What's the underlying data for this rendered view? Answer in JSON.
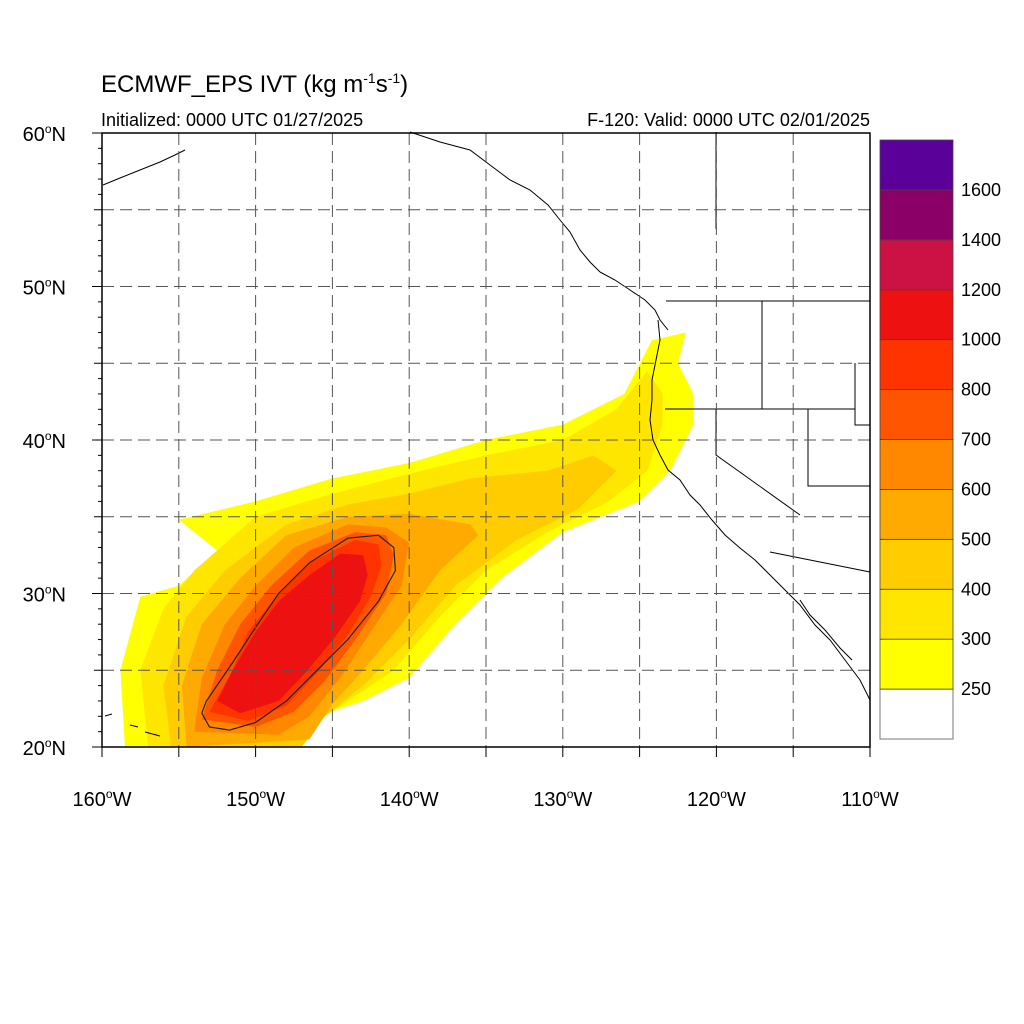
{
  "header": {
    "title_main": "ECMWF_EPS IVT (kg m",
    "title_sup1": "-1",
    "title_mid": "s",
    "title_sup2": "-1",
    "title_end": ")",
    "initialized": "Initialized: 0000 UTC 01/27/2025",
    "valid": "F-120: Valid: 0000 UTC 02/01/2025"
  },
  "axes": {
    "lat_labels": [
      {
        "value": 60,
        "text": "60",
        "suffix": "N"
      },
      {
        "value": 50,
        "text": "50",
        "suffix": "N"
      },
      {
        "value": 40,
        "text": "40",
        "suffix": "N"
      },
      {
        "value": 30,
        "text": "30",
        "suffix": "N"
      },
      {
        "value": 20,
        "text": "20",
        "suffix": "N"
      }
    ],
    "lon_labels": [
      {
        "value": -160,
        "text": "160",
        "suffix": "W"
      },
      {
        "value": -150,
        "text": "150",
        "suffix": "W"
      },
      {
        "value": -140,
        "text": "140",
        "suffix": "W"
      },
      {
        "value": -130,
        "text": "130",
        "suffix": "W"
      },
      {
        "value": -120,
        "text": "120",
        "suffix": "W"
      },
      {
        "value": -110,
        "text": "110",
        "suffix": "W"
      }
    ],
    "lon_range": [
      -160,
      -110
    ],
    "lat_range": [
      20,
      60
    ],
    "grid_lat_step": 5,
    "grid_lon_step": 5
  },
  "colorbar": {
    "levels": [
      {
        "label": "250",
        "color": "#ffff00"
      },
      {
        "label": "300",
        "color": "#ffe600"
      },
      {
        "label": "400",
        "color": "#ffcc00"
      },
      {
        "label": "500",
        "color": "#ffaa00"
      },
      {
        "label": "600",
        "color": "#ff8800"
      },
      {
        "label": "700",
        "color": "#ff5500"
      },
      {
        "label": "800",
        "color": "#ff3300"
      },
      {
        "label": "1000",
        "color": "#ee1111"
      },
      {
        "label": "1200",
        "color": "#cc1144"
      },
      {
        "label": "1400",
        "color": "#8b0066"
      },
      {
        "label": "1600",
        "color": "#5b0099"
      }
    ]
  },
  "chart_data": {
    "type": "heatmap",
    "field": "IVT",
    "features": [
      {
        "level": "250",
        "points": [
          [
            -158.5,
            20
          ],
          [
            -158.8,
            25
          ],
          [
            -157.5,
            29.8
          ],
          [
            -155,
            30.5
          ],
          [
            -152.5,
            32.8
          ],
          [
            -155,
            34.8
          ],
          [
            -150,
            36
          ],
          [
            -145,
            37.5
          ],
          [
            -140,
            38.5
          ],
          [
            -135,
            40
          ],
          [
            -130,
            41
          ],
          [
            -126,
            43
          ],
          [
            -124.2,
            46.5
          ],
          [
            -122,
            47
          ],
          [
            -122.5,
            45
          ],
          [
            -121.5,
            43
          ],
          [
            -121.5,
            41
          ],
          [
            -123,
            38
          ],
          [
            -125,
            36
          ],
          [
            -130,
            34
          ],
          [
            -134,
            31
          ],
          [
            -137,
            28
          ],
          [
            -140,
            24.5
          ],
          [
            -143,
            23
          ],
          [
            -146,
            22
          ],
          [
            -148,
            20.5
          ],
          [
            -150,
            20
          ]
        ]
      },
      {
        "level": "300",
        "points": [
          [
            -157,
            20
          ],
          [
            -157.5,
            25
          ],
          [
            -156,
            29
          ],
          [
            -154,
            31.5
          ],
          [
            -150,
            35
          ],
          [
            -145,
            36.5
          ],
          [
            -140,
            37.8
          ],
          [
            -135,
            39
          ],
          [
            -130,
            40
          ],
          [
            -126.5,
            42
          ],
          [
            -124.5,
            44.5
          ],
          [
            -123.5,
            43
          ],
          [
            -123.5,
            41
          ],
          [
            -124.5,
            38
          ],
          [
            -127,
            36
          ],
          [
            -131,
            34
          ],
          [
            -135,
            31.5
          ],
          [
            -138,
            28.5
          ],
          [
            -141,
            25
          ],
          [
            -144,
            23
          ],
          [
            -147,
            21
          ],
          [
            -148.5,
            20
          ]
        ]
      },
      {
        "level": "400",
        "points": [
          [
            -155.5,
            20
          ],
          [
            -156,
            24
          ],
          [
            -154.5,
            28.5
          ],
          [
            -152,
            31.5
          ],
          [
            -148,
            34.5
          ],
          [
            -144,
            35.8
          ],
          [
            -140,
            36.5
          ],
          [
            -136,
            37.5
          ],
          [
            -131,
            38
          ],
          [
            -128,
            39
          ],
          [
            -126.5,
            38
          ],
          [
            -129,
            35.5
          ],
          [
            -133,
            33.5
          ],
          [
            -137,
            30.5
          ],
          [
            -140,
            27
          ],
          [
            -143,
            24
          ],
          [
            -145.5,
            22
          ],
          [
            -147,
            20
          ]
        ]
      },
      {
        "level": "500",
        "points": [
          [
            -154.5,
            20
          ],
          [
            -154.8,
            24
          ],
          [
            -153.5,
            28
          ],
          [
            -151,
            31
          ],
          [
            -148,
            33.8
          ],
          [
            -144,
            35
          ],
          [
            -140,
            35.2
          ],
          [
            -136,
            34.5
          ],
          [
            -135.5,
            33.8
          ],
          [
            -138,
            31.5
          ],
          [
            -140.5,
            28
          ],
          [
            -143,
            25
          ],
          [
            -145,
            22.8
          ],
          [
            -146.5,
            20.5
          ]
        ]
      },
      {
        "level": "600",
        "points": [
          [
            -154,
            21
          ],
          [
            -153.5,
            24.5
          ],
          [
            -152,
            28
          ],
          [
            -150,
            30.5
          ],
          [
            -147.5,
            33
          ],
          [
            -144,
            34.5
          ],
          [
            -141.5,
            34.3
          ],
          [
            -140,
            33.3
          ],
          [
            -140.5,
            30.5
          ],
          [
            -142.5,
            27.5
          ],
          [
            -144.5,
            24.5
          ],
          [
            -146.5,
            22
          ],
          [
            -148.5,
            20.8
          ]
        ]
      },
      {
        "level": "700",
        "points": [
          [
            -153.5,
            21.8
          ],
          [
            -152.5,
            25
          ],
          [
            -151,
            28
          ],
          [
            -149,
            30.5
          ],
          [
            -146.5,
            32.8
          ],
          [
            -143.5,
            34
          ],
          [
            -141.5,
            33.8
          ],
          [
            -141,
            32.5
          ],
          [
            -141.5,
            30
          ],
          [
            -143.5,
            27
          ],
          [
            -145.5,
            24.3
          ],
          [
            -147.5,
            22.3
          ],
          [
            -150,
            21.3
          ]
        ]
      },
      {
        "level": "800",
        "points": [
          [
            -153,
            22.3
          ],
          [
            -151.5,
            25
          ],
          [
            -150.5,
            27.5
          ],
          [
            -148.5,
            30
          ],
          [
            -146.5,
            32
          ],
          [
            -143.5,
            33.5
          ],
          [
            -142,
            33.2
          ],
          [
            -141.8,
            31.8
          ],
          [
            -142.5,
            29.8
          ],
          [
            -144,
            27.3
          ],
          [
            -146,
            24.8
          ],
          [
            -148,
            22.7
          ],
          [
            -150.5,
            21.7
          ]
        ]
      },
      {
        "level": "1000",
        "points": [
          [
            -152.5,
            23
          ],
          [
            -151.5,
            25
          ],
          [
            -150,
            27.5
          ],
          [
            -148.5,
            29.5
          ],
          [
            -146.5,
            31.2
          ],
          [
            -144.5,
            32.6
          ],
          [
            -143,
            32.5
          ],
          [
            -142.7,
            31.2
          ],
          [
            -143.2,
            29.5
          ],
          [
            -144.8,
            27.2
          ],
          [
            -146.6,
            25
          ],
          [
            -148.5,
            23
          ],
          [
            -151,
            22.2
          ]
        ]
      }
    ],
    "contour": {
      "level": "1000",
      "points": [
        [
          -153.5,
          22.2
        ],
        [
          -153.2,
          23
        ],
        [
          -151.5,
          25.5
        ],
        [
          -150,
          27.8
        ],
        [
          -148.5,
          30
        ],
        [
          -146.5,
          32
        ],
        [
          -144,
          33.6
        ],
        [
          -142,
          33.8
        ],
        [
          -141,
          33
        ],
        [
          -140.9,
          31.5
        ],
        [
          -142,
          29.5
        ],
        [
          -144,
          27
        ],
        [
          -146,
          25
        ],
        [
          -148,
          23
        ],
        [
          -150,
          21.6
        ],
        [
          -151.7,
          21.1
        ],
        [
          -153,
          21.3
        ]
      ]
    }
  }
}
